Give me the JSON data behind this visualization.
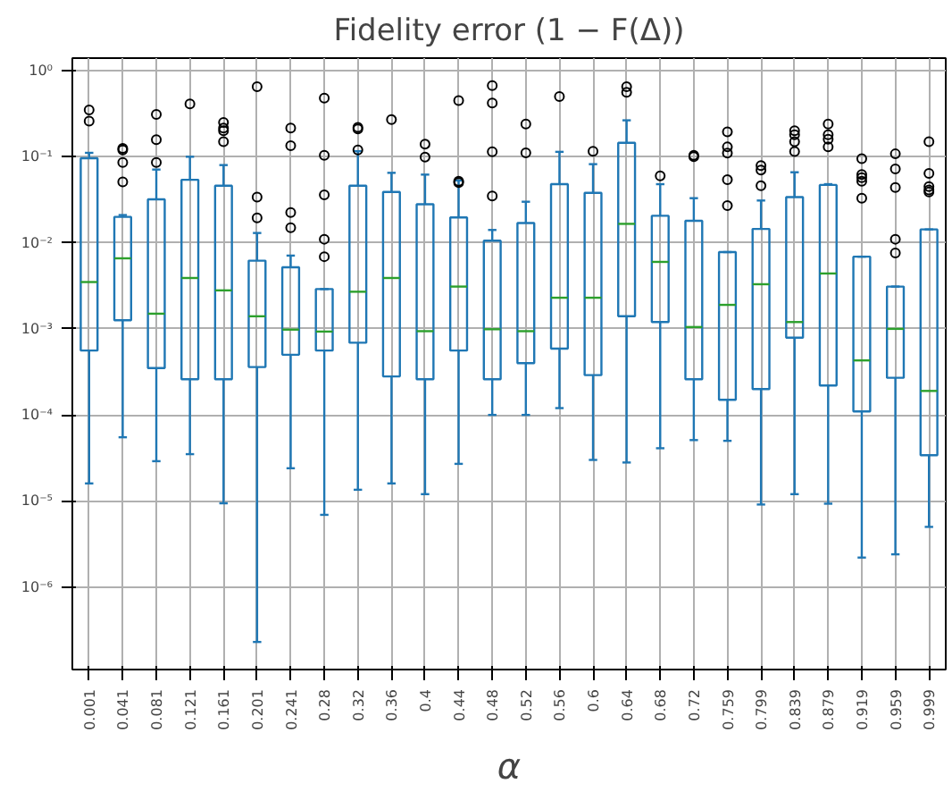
{
  "chart_data": {
    "type": "box",
    "title": "Fidelity error (1 − F(Δ))",
    "xlabel": "α",
    "color": "#1f77b4",
    "log": "y",
    "grid": true,
    "categories": [
      "0.001",
      "0.041",
      "0.081",
      "0.121",
      "0.161",
      "0.201",
      "0.241",
      "0.28",
      "0.32",
      "0.36",
      "0.4",
      "0.44",
      "0.48",
      "0.52",
      "0.56",
      "0.6",
      "0.64",
      "0.68",
      "0.72",
      "0.759",
      "0.799",
      "0.839",
      "0.879",
      "0.919",
      "0.959",
      "0.999"
    ],
    "ylim": [
      1.1e-07,
      1.4
    ],
    "yticks": [
      {
        "value": 1,
        "label": "10⁰"
      },
      {
        "value": 0.1,
        "label": "10⁻¹"
      },
      {
        "value": 0.01,
        "label": "10⁻²"
      },
      {
        "value": 0.001,
        "label": "10⁻³"
      },
      {
        "value": 0.0001,
        "label": "10⁻⁴"
      },
      {
        "value": 1e-05,
        "label": "10⁻⁵"
      },
      {
        "value": 1e-06,
        "label": "10⁻⁶"
      }
    ],
    "boxes": [
      {
        "low": 1.6e-05,
        "q1": 0.00056,
        "median": 0.0035,
        "q3": 0.096,
        "high": 0.111,
        "outliers": [
          0.35,
          0.26
        ]
      },
      {
        "low": 5.5e-05,
        "q1": 0.00126,
        "median": 0.0066,
        "q3": 0.02,
        "high": 0.021,
        "outliers": [
          0.125,
          0.12,
          0.086,
          0.051
        ]
      },
      {
        "low": 2.9e-05,
        "q1": 0.00035,
        "median": 0.0015,
        "q3": 0.032,
        "high": 0.071,
        "outliers": [
          0.31,
          0.158,
          0.086
        ]
      },
      {
        "low": 3.5e-05,
        "q1": 0.00026,
        "median": 0.0039,
        "q3": 0.054,
        "high": 0.1,
        "outliers": [
          0.41
        ]
      },
      {
        "low": 9.4e-06,
        "q1": 0.00026,
        "median": 0.0028,
        "q3": 0.046,
        "high": 0.08,
        "outliers": [
          0.25,
          0.215,
          0.2,
          0.15
        ]
      },
      {
        "low": 2.3e-07,
        "q1": 0.00036,
        "median": 0.0014,
        "q3": 0.0062,
        "high": 0.013,
        "outliers": [
          0.65,
          0.034,
          0.0195
        ]
      },
      {
        "low": 2.4e-05,
        "q1": 0.0005,
        "median": 0.00098,
        "q3": 0.0052,
        "high": 0.0071,
        "outliers": [
          0.215,
          0.134,
          0.0225,
          0.015
        ]
      },
      {
        "low": 6.9e-06,
        "q1": 0.00056,
        "median": 0.00093,
        "q3": 0.0029,
        "high": 0.0029,
        "outliers": [
          0.48,
          0.104,
          0.036,
          0.011,
          0.0069
        ]
      },
      {
        "low": 1.35e-05,
        "q1": 0.00069,
        "median": 0.0027,
        "q3": 0.046,
        "high": 0.116,
        "outliers": [
          0.22,
          0.21,
          0.12
        ]
      },
      {
        "low": 1.6e-05,
        "q1": 0.00028,
        "median": 0.0039,
        "q3": 0.039,
        "high": 0.065,
        "outliers": [
          0.27
        ]
      },
      {
        "low": 1.2e-05,
        "q1": 0.00026,
        "median": 0.00094,
        "q3": 0.028,
        "high": 0.062,
        "outliers": [
          0.14,
          0.099
        ]
      },
      {
        "low": 2.7e-05,
        "q1": 0.00056,
        "median": 0.0031,
        "q3": 0.0197,
        "high": 0.053,
        "outliers": [
          0.45,
          0.052,
          0.05
        ]
      },
      {
        "low": 0.0001,
        "q1": 0.00026,
        "median": 0.00099,
        "q3": 0.0106,
        "high": 0.0141,
        "outliers": [
          0.67,
          0.42,
          0.114,
          0.035
        ]
      },
      {
        "low": 0.0001,
        "q1": 0.0004,
        "median": 0.00094,
        "q3": 0.017,
        "high": 0.03,
        "outliers": [
          0.24,
          0.111
        ]
      },
      {
        "low": 0.00012,
        "q1": 0.00059,
        "median": 0.0023,
        "q3": 0.048,
        "high": 0.114,
        "outliers": [
          0.5
        ]
      },
      {
        "low": 3e-05,
        "q1": 0.00029,
        "median": 0.0023,
        "q3": 0.038,
        "high": 0.082,
        "outliers": [
          0.116
        ]
      },
      {
        "low": 2.8e-05,
        "q1": 0.0014,
        "median": 0.0166,
        "q3": 0.145,
        "high": 0.265,
        "outliers": [
          0.65,
          0.56
        ]
      },
      {
        "low": 4.1e-05,
        "q1": 0.0012,
        "median": 0.006,
        "q3": 0.0206,
        "high": 0.048,
        "outliers": [
          0.06
        ]
      },
      {
        "low": 5.1e-05,
        "q1": 0.00026,
        "median": 0.00105,
        "q3": 0.018,
        "high": 0.033,
        "outliers": [
          0.104,
          0.1
        ]
      },
      {
        "low": 5e-05,
        "q1": 0.00015,
        "median": 0.0019,
        "q3": 0.0078,
        "high": 0.0078,
        "outliers": [
          0.195,
          0.13,
          0.11,
          0.054,
          0.027
        ]
      },
      {
        "low": 9.1e-06,
        "q1": 0.0002,
        "median": 0.0033,
        "q3": 0.0145,
        "high": 0.031,
        "outliers": [
          0.079,
          0.07,
          0.046
        ]
      },
      {
        "low": 1.2e-05,
        "q1": 0.00079,
        "median": 0.0012,
        "q3": 0.034,
        "high": 0.066,
        "outliers": [
          0.2,
          0.18,
          0.15,
          0.115
        ]
      },
      {
        "low": 9.3e-06,
        "q1": 0.00022,
        "median": 0.0044,
        "q3": 0.047,
        "high": 0.048,
        "outliers": [
          0.24,
          0.18,
          0.16,
          0.13
        ]
      },
      {
        "low": 2.2e-06,
        "q1": 0.00011,
        "median": 0.00043,
        "q3": 0.0069,
        "high": 0.0069,
        "outliers": [
          0.095,
          0.062,
          0.057,
          0.052,
          0.033
        ]
      },
      {
        "low": 2.4e-06,
        "q1": 0.00027,
        "median": 0.001,
        "q3": 0.0031,
        "high": 0.0031,
        "outliers": [
          0.108,
          0.072,
          0.044,
          0.011,
          0.0076
        ]
      },
      {
        "low": 5e-06,
        "q1": 3.4e-05,
        "median": 0.00019,
        "q3": 0.0143,
        "high": 0.0143,
        "outliers": [
          0.15,
          0.064,
          0.045,
          0.041,
          0.039
        ]
      }
    ]
  }
}
